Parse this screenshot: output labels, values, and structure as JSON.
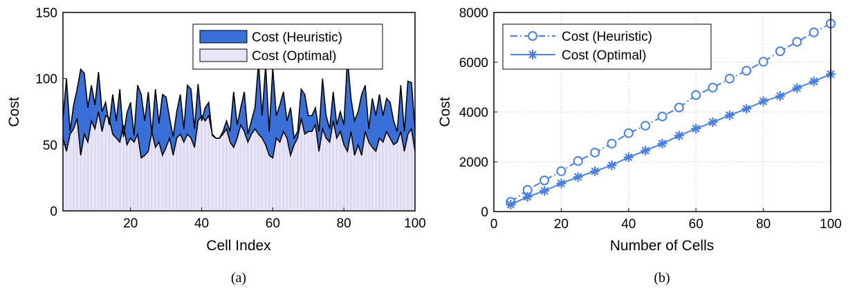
{
  "captions": [
    "(a)",
    "(b)"
  ],
  "colors": {
    "heuristic_fill": "#3a6fd8",
    "optimal_fill": "#e8e6f6",
    "line": "#4a7fdc",
    "outline": "#000000"
  },
  "chart_data": [
    {
      "type": "area",
      "title": "",
      "xlabel": "Cell Index",
      "ylabel": "Cost",
      "xlim": [
        1,
        100
      ],
      "ylim": [
        0,
        150
      ],
      "xticks": [
        20,
        40,
        60,
        80,
        100
      ],
      "yticks": [
        0,
        50,
        100,
        150
      ],
      "grid": false,
      "legend_position": "top-right",
      "series": [
        {
          "name": "Cost (Heuristic)",
          "values": [
            70,
            100,
            60,
            80,
            92,
            107,
            104,
            78,
            95,
            80,
            105,
            75,
            82,
            65,
            88,
            68,
            92,
            56,
            74,
            82,
            57,
            95,
            88,
            68,
            90,
            58,
            92,
            66,
            88,
            86,
            70,
            56,
            75,
            88,
            62,
            95,
            92,
            62,
            96,
            68,
            78,
            82,
            57,
            55,
            55,
            60,
            68,
            60,
            90,
            65,
            78,
            90,
            58,
            68,
            78,
            112,
            72,
            110,
            60,
            108,
            72,
            80,
            90,
            68,
            78,
            55,
            60,
            92,
            88,
            72,
            72,
            78,
            60,
            100,
            72,
            62,
            90,
            65,
            75,
            65,
            115,
            85,
            68,
            75,
            88,
            95,
            62,
            85,
            72,
            88,
            72,
            85,
            82,
            68,
            60,
            95,
            60,
            98,
            97,
            62
          ]
        },
        {
          "name": "Cost (Optimal)",
          "values": [
            55,
            45,
            58,
            62,
            70,
            42,
            58,
            52,
            68,
            62,
            75,
            60,
            72,
            70,
            58,
            55,
            52,
            65,
            50,
            55,
            52,
            58,
            40,
            42,
            45,
            60,
            48,
            52,
            42,
            48,
            55,
            42,
            55,
            58,
            52,
            58,
            55,
            48,
            68,
            72,
            68,
            72,
            58,
            55,
            55,
            58,
            62,
            52,
            48,
            55,
            65,
            60,
            52,
            58,
            62,
            58,
            55,
            50,
            42,
            40,
            55,
            52,
            60,
            55,
            42,
            50,
            55,
            70,
            58,
            60,
            60,
            65,
            45,
            62,
            55,
            52,
            68,
            55,
            60,
            50,
            45,
            60,
            42,
            50,
            42,
            60,
            52,
            48,
            45,
            55,
            52,
            60,
            55,
            50,
            52,
            60,
            45,
            58,
            62,
            45
          ]
        }
      ]
    },
    {
      "type": "line",
      "title": "",
      "xlabel": "Number of Cells",
      "ylabel": "Cost",
      "xlim": [
        0,
        100
      ],
      "ylim": [
        0,
        8000
      ],
      "xticks": [
        0,
        20,
        40,
        60,
        80,
        100
      ],
      "yticks": [
        0,
        2000,
        4000,
        6000,
        8000
      ],
      "grid": true,
      "legend_position": "top-left",
      "x": [
        5,
        10,
        15,
        20,
        25,
        30,
        35,
        40,
        45,
        50,
        55,
        60,
        65,
        70,
        75,
        80,
        85,
        90,
        95,
        100
      ],
      "series": [
        {
          "name": "Cost (Heuristic)",
          "marker": "circle",
          "dash": "dash-dot",
          "values": [
            390,
            870,
            1250,
            1620,
            2030,
            2370,
            2730,
            3150,
            3450,
            3820,
            4180,
            4680,
            4980,
            5340,
            5660,
            6020,
            6440,
            6820,
            7200,
            7550
          ]
        },
        {
          "name": "Cost (Optimal)",
          "marker": "asterisk",
          "dash": "solid",
          "values": [
            280,
            590,
            830,
            1130,
            1390,
            1620,
            1860,
            2180,
            2450,
            2730,
            3050,
            3330,
            3590,
            3870,
            4130,
            4430,
            4640,
            4960,
            5230,
            5520
          ]
        }
      ]
    }
  ]
}
